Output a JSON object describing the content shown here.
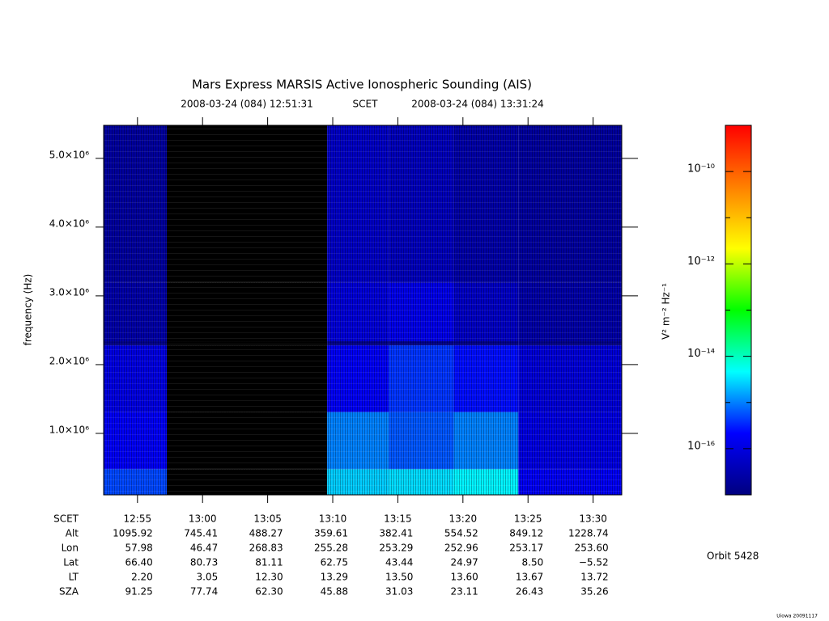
{
  "chart_data": {
    "type": "spectrogram",
    "title": "Mars Express MARSIS Active Ionospheric Sounding (AIS)",
    "subtitle_start": "2008-03-24 (084) 12:51:31",
    "subtitle_center": "SCET",
    "subtitle_end": "2008-03-24 (084) 13:31:24",
    "y_label": "frequency (Hz)",
    "xlim": [
      772.4,
      812.2
    ],
    "xticks": [
      {
        "value": 775,
        "label": "12:55"
      },
      {
        "value": 780,
        "label": "13:00"
      },
      {
        "value": 785,
        "label": "13:05"
      },
      {
        "value": 790,
        "label": "13:10"
      },
      {
        "value": 795,
        "label": "13:15"
      },
      {
        "value": 800,
        "label": "13:20"
      },
      {
        "value": 805,
        "label": "13:25"
      },
      {
        "value": 810,
        "label": "13:30"
      }
    ],
    "ylim": [
      106000,
      5480000
    ],
    "yticks": [
      {
        "value": 1000000,
        "label": "1.0×10⁶"
      },
      {
        "value": 2000000,
        "label": "2.0×10⁶"
      },
      {
        "value": 3000000,
        "label": "3.0×10⁶"
      },
      {
        "value": 4000000,
        "label": "4.0×10⁶"
      },
      {
        "value": 5000000,
        "label": "5.0×10⁶"
      }
    ],
    "x_edges": [
      772.4,
      777.25,
      789.57,
      794.3,
      799.3,
      804.26,
      812.2
    ],
    "y_edges": [
      106000,
      480000,
      1310000,
      2280000,
      2340000,
      3190000,
      5480000
    ],
    "z": [
      [
        5e-16,
        null,
        2.5e-15,
        3e-15,
        4e-15,
        1.6e-16
      ],
      [
        1.6e-16,
        null,
        1e-15,
        6e-16,
        1e-15,
        1e-16
      ],
      [
        1e-16,
        null,
        1.6e-16,
        4e-16,
        2.5e-16,
        8e-17
      ],
      [
        1.2e-17,
        null,
        1.2e-17,
        1.2e-17,
        1.2e-17,
        1.2e-17
      ],
      [
        2.5e-17,
        null,
        8e-17,
        1.2e-16,
        5e-17,
        2.5e-17
      ],
      [
        2e-17,
        null,
        5e-17,
        4e-17,
        2.5e-17,
        2e-17
      ]
    ],
    "no_data_color": "#000000",
    "z_label": "V² m⁻² Hz⁻¹",
    "zscale": "log",
    "zlim": [
      1e-17,
      1e-09
    ],
    "zticks": [
      {
        "value": 1e-10,
        "label": "10⁻¹⁰"
      },
      {
        "value": 1e-12,
        "label": "10⁻¹²"
      },
      {
        "value": 1e-14,
        "label": "10⁻¹⁴"
      },
      {
        "value": 1e-16,
        "label": "10⁻¹⁶"
      }
    ],
    "zminor": [
      1e-11,
      1e-13,
      1e-15
    ],
    "colormap": [
      "#00007f",
      "#0000ff",
      "#00ffff",
      "#00ff00",
      "#ffff00",
      "#ff8000",
      "#ff0000"
    ],
    "ephemeris_label": "SCET",
    "ephemeris": [
      {
        "name": "Alt",
        "values": [
          "1095.92",
          "745.41",
          "488.27",
          "359.61",
          "382.41",
          "554.52",
          "849.12",
          "1228.74"
        ]
      },
      {
        "name": "Lon",
        "values": [
          "57.98",
          "46.47",
          "268.83",
          "255.28",
          "253.29",
          "252.96",
          "253.17",
          "253.60"
        ]
      },
      {
        "name": "Lat",
        "values": [
          "66.40",
          "80.73",
          "81.11",
          "62.75",
          "43.44",
          "24.97",
          "8.50",
          "−5.52"
        ]
      },
      {
        "name": "LT",
        "values": [
          "2.20",
          "3.05",
          "12.30",
          "13.29",
          "13.50",
          "13.60",
          "13.67",
          "13.72"
        ]
      },
      {
        "name": "SZA",
        "values": [
          "91.25",
          "77.74",
          "62.30",
          "45.88",
          "31.03",
          "23.11",
          "26.43",
          "35.26"
        ]
      }
    ],
    "orbit": "Orbit 5428",
    "credit": "Uiowa 20091117"
  }
}
